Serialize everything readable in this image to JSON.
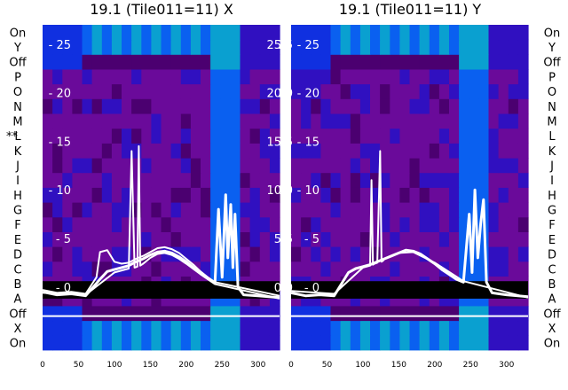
{
  "chart_data": [
    {
      "type": "heatmap",
      "title": "19.1 (Tile011=11) X",
      "xlabel": "",
      "ylabel": "",
      "xlim": [
        0,
        330
      ],
      "ylim": [
        -6.5,
        27
      ],
      "x_ticks": [
        0,
        50,
        100,
        150,
        200,
        250,
        300
      ],
      "y_ticks": [
        0,
        5,
        10,
        15,
        20,
        25
      ],
      "row_labels": [
        "On",
        "X",
        "Off",
        "A",
        "B",
        "C",
        "D",
        "E",
        "F",
        "G",
        "H",
        "I",
        "J",
        "K",
        "L",
        "M",
        "N",
        "O",
        "P",
        "Off",
        "Y",
        "On"
      ],
      "marked_row": "L",
      "marker_text": "**",
      "traces": [
        {
          "x": [
            0,
            20,
            40,
            60,
            80,
            90,
            100,
            110,
            120,
            130,
            140,
            150,
            160,
            170,
            180,
            190,
            200,
            210,
            220,
            230,
            240,
            245,
            250,
            255,
            258,
            262,
            265,
            268,
            272,
            280,
            300,
            330
          ],
          "y": [
            -0.5,
            -0.8,
            -0.7,
            -0.9,
            0.8,
            1.6,
            1.8,
            2.0,
            2.2,
            2.6,
            2.9,
            3.3,
            3.6,
            3.7,
            3.5,
            3.1,
            2.6,
            2.0,
            1.4,
            0.9,
            0.4,
            8.0,
            1.0,
            9.5,
            3.0,
            8.5,
            2.0,
            7.5,
            0.0,
            -0.8,
            -0.9,
            -1.1
          ]
        },
        {
          "x": [
            0,
            20,
            40,
            60,
            75,
            80,
            90,
            100,
            110,
            120,
            130,
            140,
            150,
            160,
            170,
            180,
            190,
            200,
            210,
            220,
            230,
            240,
            330
          ],
          "y": [
            -0.3,
            -0.6,
            -0.5,
            -0.7,
            1.0,
            3.6,
            3.8,
            2.6,
            2.4,
            2.5,
            2.9,
            3.2,
            3.6,
            4.0,
            4.1,
            3.9,
            3.5,
            2.9,
            2.3,
            1.6,
            1.0,
            0.5,
            -0.9
          ]
        },
        {
          "x": [
            0,
            60,
            100,
            120,
            124,
            128,
            132,
            134,
            136,
            140,
            150,
            160,
            170,
            180,
            190,
            200,
            220,
            240,
            330
          ],
          "y": [
            -0.6,
            -0.8,
            1.5,
            1.9,
            14.0,
            2.0,
            2.1,
            14.5,
            2.2,
            2.4,
            3.0,
            3.4,
            3.5,
            3.3,
            2.9,
            2.4,
            1.3,
            0.3,
            -1.2
          ]
        }
      ]
    },
    {
      "type": "heatmap",
      "title": "19.1 (Tile011=11) Y",
      "xlabel": "",
      "ylabel": "",
      "xlim": [
        0,
        330
      ],
      "ylim": [
        -6.5,
        27
      ],
      "x_ticks": [
        0,
        50,
        100,
        150,
        200,
        250,
        300
      ],
      "y_ticks": [
        0,
        5,
        10,
        15,
        20,
        25
      ],
      "row_labels": [
        "On",
        "X",
        "Off",
        "A",
        "B",
        "C",
        "D",
        "E",
        "F",
        "G",
        "H",
        "I",
        "J",
        "K",
        "L",
        "M",
        "N",
        "O",
        "P",
        "Off",
        "Y",
        "On"
      ],
      "traces": [
        {
          "x": [
            0,
            20,
            40,
            60,
            80,
            90,
            100,
            110,
            120,
            130,
            140,
            150,
            160,
            170,
            180,
            190,
            200,
            210,
            220,
            230,
            240,
            248,
            252,
            256,
            260,
            264,
            268,
            272,
            280,
            300,
            330
          ],
          "y": [
            -0.6,
            -0.9,
            -0.8,
            -0.9,
            1.5,
            1.9,
            2.1,
            2.3,
            2.6,
            2.9,
            3.2,
            3.5,
            3.8,
            3.7,
            3.4,
            2.9,
            2.4,
            1.8,
            1.3,
            0.8,
            0.5,
            7.5,
            1.5,
            10.0,
            3.0,
            6.5,
            9.0,
            0.5,
            -0.6,
            -0.8,
            -1.0
          ]
        },
        {
          "x": [
            0,
            60,
            100,
            110,
            112,
            114,
            116,
            120,
            124,
            126,
            128,
            130,
            150,
            170,
            200,
            240,
            330
          ],
          "y": [
            -0.4,
            -0.7,
            2.0,
            2.2,
            11.0,
            2.3,
            2.4,
            2.5,
            14.0,
            2.6,
            2.7,
            2.9,
            3.5,
            3.6,
            2.5,
            0.6,
            -1.1
          ]
        }
      ]
    }
  ],
  "colors": {
    "trace": "#ffffff",
    "baseline_band": "#000000",
    "background_row": "#6a0a9a",
    "palette": [
      "#2a0040",
      "#4b0070",
      "#6a0a9a",
      "#3010c0",
      "#1030e0",
      "#0a60f0",
      "#0aa0d0",
      "#10c080"
    ]
  }
}
